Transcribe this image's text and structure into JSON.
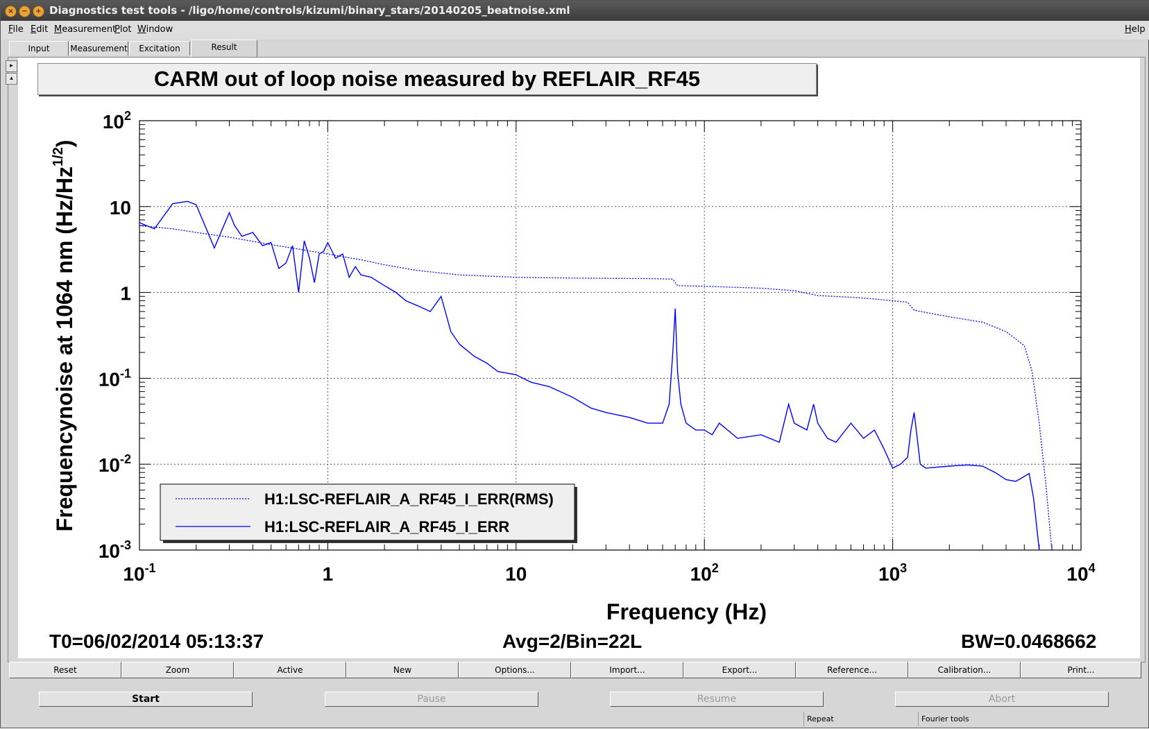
{
  "window": {
    "title": "Diagnostics test tools - /ligo/home/controls/kizumi/binary_stars/20140205_beatnoise.xml"
  },
  "menu": {
    "file": "File",
    "edit": "Edit",
    "measurement": "Measurement",
    "plot": "Plot",
    "window": "Window",
    "help": "Help"
  },
  "tabs": {
    "input": "Input",
    "measurement": "Measurement",
    "excitation": "Excitation",
    "result": "Result"
  },
  "plot": {
    "title": "CARM out of loop noise measured by REFLAIR_RF45",
    "t0": "T0=06/02/2014 05:13:37",
    "avg": "Avg=2/Bin=22L",
    "bw": "BW=0.0468662"
  },
  "chart_data": {
    "type": "line",
    "xscale": "log",
    "yscale": "log",
    "xlabel": "Frequency (Hz)",
    "ylabel_main": "Frequencynoise at 1064 nm (Hz/Hz",
    "ylabel_sup": "1/2",
    "ylabel_end": ")",
    "xlim": [
      0.1,
      10000
    ],
    "ylim": [
      0.001,
      100
    ],
    "xticks": [
      {
        "value": 0.1,
        "base": "10",
        "exp": "-1"
      },
      {
        "value": 1,
        "base": "1",
        "exp": ""
      },
      {
        "value": 10,
        "base": "10",
        "exp": ""
      },
      {
        "value": 100,
        "base": "10",
        "exp": "2"
      },
      {
        "value": 1000,
        "base": "10",
        "exp": "3"
      },
      {
        "value": 10000,
        "base": "10",
        "exp": "4"
      }
    ],
    "yticks": [
      {
        "value": 100,
        "base": "10",
        "exp": "2"
      },
      {
        "value": 10,
        "base": "10",
        "exp": ""
      },
      {
        "value": 1,
        "base": "1",
        "exp": ""
      },
      {
        "value": 0.1,
        "base": "10",
        "exp": "-1"
      },
      {
        "value": 0.01,
        "base": "10",
        "exp": "-2"
      },
      {
        "value": 0.001,
        "base": "10",
        "exp": "-3"
      }
    ],
    "grid": true,
    "legend_position": "bottom-left",
    "series": [
      {
        "name": "H1:LSC-REFLAIR_A_RF45_I_ERR(RMS)",
        "style": "dotted",
        "color": "#0000ff",
        "x": [
          0.1,
          0.15,
          0.2,
          0.3,
          0.5,
          0.7,
          1,
          1.5,
          2,
          3,
          5,
          7,
          10,
          20,
          50,
          68,
          72,
          100,
          200,
          300,
          400,
          600,
          800,
          1000,
          1200,
          1300,
          2000,
          3000,
          4000,
          5000,
          5500,
          6000,
          6500,
          7000
        ],
        "values": [
          6.0,
          5.5,
          5.0,
          4.4,
          3.6,
          3.2,
          2.8,
          2.4,
          2.1,
          1.8,
          1.6,
          1.55,
          1.5,
          1.47,
          1.45,
          1.43,
          1.2,
          1.18,
          1.12,
          1.05,
          0.92,
          0.88,
          0.84,
          0.8,
          0.77,
          0.62,
          0.52,
          0.45,
          0.35,
          0.24,
          0.12,
          0.03,
          0.006,
          0.001
        ]
      },
      {
        "name": "H1:LSC-REFLAIR_A_RF45_I_ERR",
        "style": "solid",
        "color": "#0000ff",
        "x": [
          0.1,
          0.12,
          0.15,
          0.18,
          0.2,
          0.25,
          0.3,
          0.32,
          0.35,
          0.4,
          0.45,
          0.5,
          0.55,
          0.6,
          0.65,
          0.7,
          0.75,
          0.8,
          0.85,
          0.9,
          0.95,
          1,
          1.1,
          1.2,
          1.3,
          1.4,
          1.5,
          1.7,
          2,
          2.3,
          2.6,
          3,
          3.5,
          4,
          4.5,
          5,
          6,
          7,
          8,
          10,
          12,
          15,
          20,
          25,
          30,
          40,
          50,
          60,
          65,
          68,
          70,
          72,
          75,
          80,
          90,
          100,
          110,
          120,
          150,
          200,
          250,
          280,
          300,
          350,
          380,
          400,
          450,
          500,
          600,
          700,
          800,
          900,
          1000,
          1100,
          1200,
          1250,
          1300,
          1350,
          1400,
          1500,
          2000,
          2500,
          3000,
          3500,
          4000,
          4500,
          5000,
          5300,
          5600,
          6000
        ],
        "values": [
          6.5,
          5.5,
          10.8,
          11.5,
          10.5,
          3.3,
          8.5,
          6.0,
          4.5,
          5.0,
          3.5,
          3.8,
          1.9,
          2.2,
          3.5,
          1.0,
          4.0,
          2.5,
          1.3,
          2.8,
          3.0,
          3.8,
          2.5,
          2.8,
          1.5,
          2.0,
          1.6,
          1.5,
          1.2,
          1.0,
          0.8,
          0.7,
          0.6,
          0.9,
          0.35,
          0.25,
          0.18,
          0.15,
          0.12,
          0.11,
          0.09,
          0.08,
          0.06,
          0.045,
          0.04,
          0.035,
          0.03,
          0.03,
          0.05,
          0.2,
          0.65,
          0.12,
          0.05,
          0.03,
          0.025,
          0.025,
          0.022,
          0.03,
          0.02,
          0.022,
          0.018,
          0.05,
          0.03,
          0.025,
          0.05,
          0.03,
          0.02,
          0.018,
          0.03,
          0.02,
          0.025,
          0.015,
          0.009,
          0.01,
          0.012,
          0.025,
          0.04,
          0.02,
          0.01,
          0.009,
          0.0095,
          0.0098,
          0.0095,
          0.008,
          0.0066,
          0.0063,
          0.0072,
          0.0078,
          0.004,
          0.001
        ]
      }
    ]
  },
  "buttons": {
    "reset": "Reset",
    "zoom": "Zoom",
    "active": "Active",
    "new": "New",
    "options": "Options...",
    "import": "Import...",
    "export": "Export...",
    "reference": "Reference...",
    "calibration": "Calibration...",
    "print": "Print..."
  },
  "controls": {
    "start": "Start",
    "pause": "Pause",
    "resume": "Resume",
    "abort": "Abort"
  },
  "status": {
    "repeat": "Repeat",
    "fourier": "Fourier tools"
  },
  "colors": {
    "trace": "#0000ff",
    "grid": "#000000",
    "titlebar": "#4a4a4a"
  }
}
